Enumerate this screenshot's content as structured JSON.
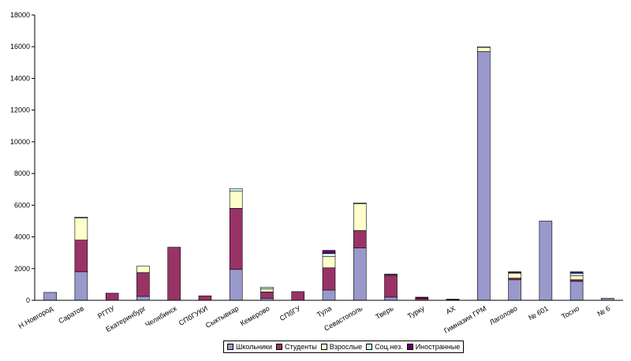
{
  "chart_data": {
    "type": "bar",
    "stacked": true,
    "categories": [
      "Н.Новгород",
      "Саратов",
      "РГПУ",
      "Екатеринбург",
      "Челябинск",
      "СПбГУКИ",
      "Сыктывкар",
      "Кемерово",
      "СПбГУ",
      "Тула",
      "Севастополь",
      "Тверь",
      "Турку",
      "АХ",
      "Гимназия ГРМ",
      "Лаголово",
      "№ 601",
      "Тосно",
      "№ 6"
    ],
    "series": [
      {
        "name": "Школьники",
        "color": "#9999cc",
        "values": [
          500,
          1800,
          0,
          250,
          0,
          0,
          1950,
          130,
          0,
          650,
          3300,
          200,
          0,
          40,
          15700,
          1300,
          5000,
          1200,
          130
        ]
      },
      {
        "name": "Студенты",
        "color": "#993366",
        "values": [
          0,
          2000,
          450,
          1500,
          3350,
          280,
          3850,
          400,
          550,
          1400,
          1100,
          1350,
          120,
          30,
          0,
          100,
          0,
          100,
          0
        ]
      },
      {
        "name": "Взрослые",
        "color": "#ffffcc",
        "values": [
          0,
          1400,
          0,
          400,
          0,
          0,
          1100,
          200,
          0,
          700,
          1700,
          50,
          0,
          0,
          250,
          300,
          0,
          250,
          0
        ]
      },
      {
        "name": "Соц.нез.",
        "color": "#ccffff",
        "values": [
          0,
          50,
          0,
          0,
          0,
          0,
          150,
          100,
          0,
          200,
          50,
          0,
          0,
          0,
          50,
          50,
          0,
          150,
          0
        ]
      },
      {
        "name": "Иностранные",
        "color": "#660066",
        "values": [
          0,
          0,
          0,
          0,
          0,
          0,
          0,
          0,
          0,
          200,
          0,
          50,
          80,
          0,
          0,
          50,
          0,
          100,
          0
        ]
      }
    ],
    "yticks": [
      0,
      2000,
      4000,
      6000,
      8000,
      10000,
      12000,
      14000,
      16000,
      18000
    ],
    "ylim": [
      0,
      18000
    ],
    "legend_position": "bottom",
    "grid": false
  }
}
